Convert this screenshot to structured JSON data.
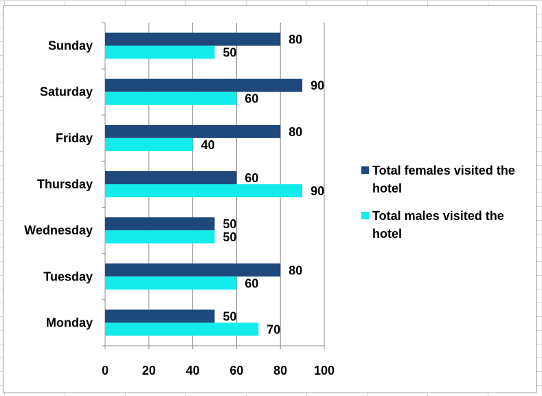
{
  "chart_data": {
    "type": "bar",
    "orientation": "horizontal",
    "categories": [
      "Monday",
      "Tuesday",
      "Wednesday",
      "Thursday",
      "Friday",
      "Saturday",
      "Sunday"
    ],
    "series": [
      {
        "name": "Total females visited the hotel",
        "values": [
          50,
          80,
          50,
          60,
          80,
          90,
          80
        ],
        "color": "#1F497D"
      },
      {
        "name": "Total males visited the hotel",
        "values": [
          70,
          60,
          50,
          90,
          40,
          60,
          50
        ],
        "color": "#14EBEB"
      }
    ],
    "xlim": [
      0,
      100
    ],
    "x_ticks": [
      "0",
      "20",
      "40",
      "60",
      "80",
      "100"
    ],
    "x_tick_values": [
      0,
      20,
      40,
      60,
      80,
      100
    ],
    "grid": "vertical",
    "data_labels": true,
    "legend_position": "right",
    "title": "",
    "xlabel": "",
    "ylabel": ""
  }
}
